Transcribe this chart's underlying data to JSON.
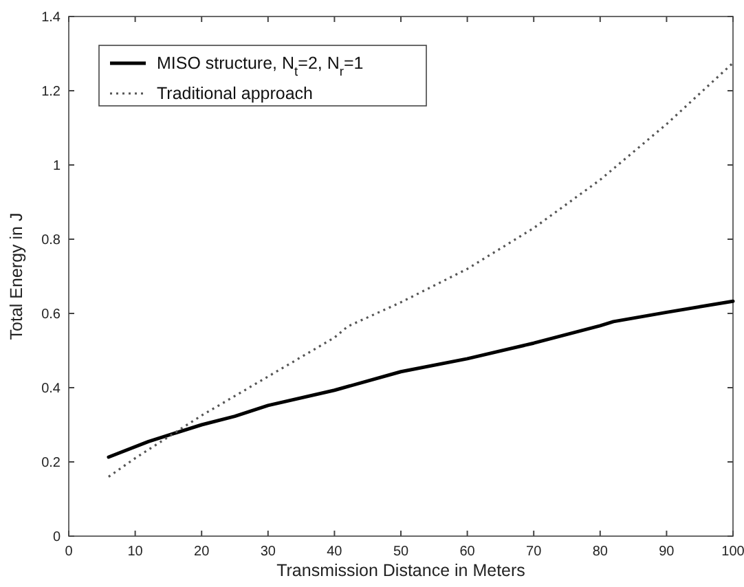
{
  "chart_data": {
    "type": "line",
    "xlabel": "Transmission Distance in Meters",
    "ylabel": "Total Energy in J",
    "xlim": [
      0,
      100
    ],
    "xticks": [
      0,
      10,
      20,
      30,
      40,
      50,
      60,
      70,
      80,
      90,
      100
    ],
    "ylim": [
      0,
      1.4
    ],
    "yticks": [
      0,
      0.2,
      0.4,
      0.6,
      0.8,
      1,
      1.2,
      1.4
    ],
    "grid": false,
    "legend": "top left",
    "tick_labels": "xy",
    "series": [
      {
        "name": "MISO structure, N$_{t}$=2, N$_{r}$=1",
        "color": "#000000",
        "line_style": "solid",
        "x": [
          6,
          12,
          20,
          25,
          30,
          40,
          50,
          60,
          70,
          80,
          82,
          90,
          100
        ],
        "values": [
          0.213,
          0.255,
          0.3,
          0.323,
          0.352,
          0.393,
          0.443,
          0.478,
          0.52,
          0.567,
          0.578,
          0.603,
          0.633
        ]
      },
      {
        "name": "Traditional approach",
        "color": "#555555",
        "line_style": "dotted",
        "x": [
          6,
          10,
          20,
          30,
          40,
          42,
          50,
          60,
          70,
          80,
          90,
          100
        ],
        "values": [
          0.16,
          0.21,
          0.325,
          0.43,
          0.535,
          0.565,
          0.63,
          0.72,
          0.83,
          0.96,
          1.11,
          1.275
        ]
      }
    ]
  }
}
